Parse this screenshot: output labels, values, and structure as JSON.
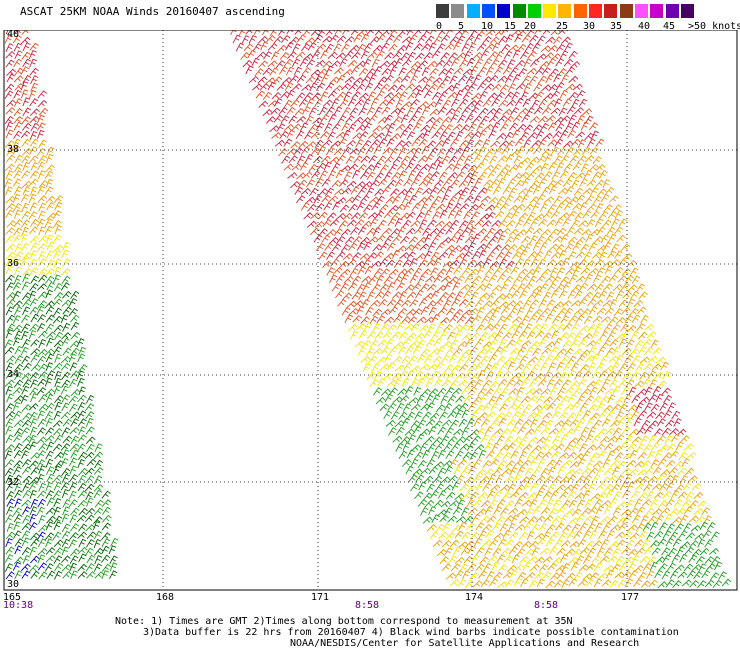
{
  "title": "ASCAT 25KM NOAA Winds 20160407 ascending",
  "legend": {
    "swatches": [
      "#3c3c3c",
      "#8c8c8c",
      "#00b0ff",
      "#0050ff",
      "#0000c8",
      "#008c00",
      "#00d000",
      "#ffe800",
      "#ffb400",
      "#ff6400",
      "#ff2820",
      "#c81e1e",
      "#8c3c14",
      "#ff50ff",
      "#c800c8",
      "#6e00b4",
      "#460064"
    ],
    "ticks": [
      "0",
      "5",
      "10",
      "15",
      "20",
      "25",
      "30",
      "35",
      "40",
      "45",
      ">50 knots"
    ]
  },
  "map": {
    "lat_labels": [
      "40",
      "38",
      "36",
      "34",
      "32",
      "30"
    ],
    "lon_labels": [
      "165",
      "168",
      "171",
      "174",
      "177"
    ],
    "time_labels": [
      "10:38",
      "8:58",
      "8:58"
    ]
  },
  "notes": {
    "line1": "Note: 1) Times are GMT 2)Times along bottom correspond to measurement at 35N",
    "line2": "3)Data buffer is 22 hrs from 20160407 4) Black wind barbs indicate possible contamination",
    "line3": "NOAA/NESDIS/Center for Satellite Applications and Research"
  },
  "colors": {
    "red": "#d21e3c",
    "orange_red": "#e8501e",
    "orange": "#f0a000",
    "yellow": "#f5e600",
    "green": "#1e9e1e",
    "dark_green": "#006400",
    "blue": "#0000c8"
  }
}
